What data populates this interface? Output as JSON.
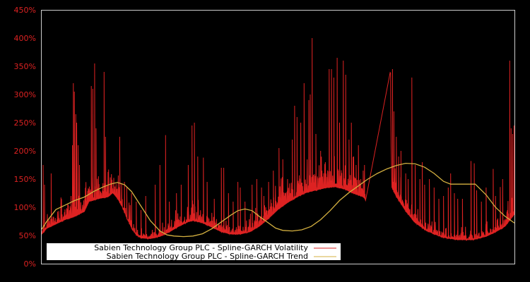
{
  "chart_data": {
    "type": "line",
    "title": "",
    "xlabel": "",
    "ylabel": "",
    "ylim": [
      0,
      450
    ],
    "y_ticks": [
      "0%",
      "50%",
      "100%",
      "150%",
      "200%",
      "250%",
      "300%",
      "350%",
      "400%",
      "450%"
    ],
    "y_tick_values": [
      0,
      50,
      100,
      150,
      200,
      250,
      300,
      350,
      400,
      450
    ],
    "x_ticks": [],
    "grid": false,
    "legend_position": "lower-left",
    "colors": {
      "background": "#000000",
      "frame": "#cccccc",
      "tick_label": "#dd2222",
      "volatility": "#dd2222",
      "trend": "#d4b040",
      "legend_bg": "#ffffff"
    },
    "x_domain": [
      0,
      100
    ],
    "series": [
      {
        "name": "Sabien Technology Group PLC - Spline-GARCH Volatility",
        "color": "#dd2222",
        "baseline": [
          [
            0,
            52
          ],
          [
            1,
            62
          ],
          [
            3,
            70
          ],
          [
            5,
            78
          ],
          [
            7,
            84
          ],
          [
            9,
            92
          ],
          [
            10,
            110
          ],
          [
            12,
            115
          ],
          [
            14,
            118
          ],
          [
            15,
            125
          ],
          [
            16,
            115
          ],
          [
            17,
            100
          ],
          [
            18,
            80
          ],
          [
            19,
            62
          ],
          [
            20,
            50
          ],
          [
            21,
            45
          ],
          [
            23,
            44
          ],
          [
            25,
            48
          ],
          [
            27,
            56
          ],
          [
            29,
            66
          ],
          [
            31,
            74
          ],
          [
            32,
            76
          ],
          [
            34,
            72
          ],
          [
            36,
            64
          ],
          [
            38,
            56
          ],
          [
            40,
            52
          ],
          [
            42,
            52
          ],
          [
            44,
            56
          ],
          [
            46,
            66
          ],
          [
            48,
            80
          ],
          [
            50,
            96
          ],
          [
            52,
            108
          ],
          [
            54,
            118
          ],
          [
            56,
            126
          ],
          [
            58,
            130
          ],
          [
            60,
            134
          ],
          [
            62,
            136
          ],
          [
            64,
            132
          ],
          [
            66,
            124
          ],
          [
            68,
            118
          ],
          [
            68.5,
            112
          ],
          [
            73.7,
            339
          ],
          [
            74,
            135
          ],
          [
            75,
            118
          ],
          [
            77,
            92
          ],
          [
            79,
            72
          ],
          [
            81,
            60
          ],
          [
            83,
            52
          ],
          [
            85,
            46
          ],
          [
            88,
            42
          ],
          [
            91,
            42
          ],
          [
            94,
            48
          ],
          [
            96,
            56
          ],
          [
            98,
            66
          ],
          [
            100,
            88
          ]
        ],
        "spikes": [
          [
            0.3,
            175
          ],
          [
            0.6,
            140
          ],
          [
            2,
            160
          ],
          [
            5.5,
            105
          ],
          [
            6,
            95
          ],
          [
            6.2,
            120
          ],
          [
            6.5,
            210
          ],
          [
            6.7,
            320
          ],
          [
            6.9,
            305
          ],
          [
            7.2,
            265
          ],
          [
            7.4,
            250
          ],
          [
            7.7,
            210
          ],
          [
            8,
            175
          ],
          [
            10.5,
            315
          ],
          [
            10.8,
            310
          ],
          [
            11.2,
            355
          ],
          [
            11.5,
            240
          ],
          [
            12,
            155
          ],
          [
            13.2,
            340
          ],
          [
            13.5,
            225
          ],
          [
            16.5,
            225
          ],
          [
            17.5,
            145
          ],
          [
            18,
            135
          ],
          [
            19,
            125
          ],
          [
            20,
            110
          ],
          [
            21,
            95
          ],
          [
            22,
            120
          ],
          [
            24,
            140
          ],
          [
            25,
            175
          ],
          [
            26.2,
            228
          ],
          [
            27,
            110
          ],
          [
            28.5,
            125
          ],
          [
            29.5,
            140
          ],
          [
            31,
            175
          ],
          [
            31.8,
            245
          ],
          [
            32.3,
            250
          ],
          [
            33,
            190
          ],
          [
            34.2,
            188
          ],
          [
            35,
            145
          ],
          [
            36.5,
            115
          ],
          [
            38,
            170
          ],
          [
            38.5,
            170
          ],
          [
            39.5,
            125
          ],
          [
            40.5,
            110
          ],
          [
            41.5,
            145
          ],
          [
            42,
            135
          ],
          [
            43,
            110
          ],
          [
            44.5,
            140
          ],
          [
            45.5,
            150
          ],
          [
            46.5,
            135
          ],
          [
            47,
            120
          ],
          [
            48,
            145
          ],
          [
            49,
            165
          ],
          [
            50.2,
            205
          ],
          [
            51,
            185
          ],
          [
            52,
            150
          ],
          [
            53,
            220
          ],
          [
            53.5,
            280
          ],
          [
            54,
            260
          ],
          [
            54.8,
            250
          ],
          [
            55.5,
            320
          ],
          [
            56.5,
            290
          ],
          [
            56.8,
            300
          ],
          [
            57.2,
            400
          ],
          [
            58,
            230
          ],
          [
            59,
            200
          ],
          [
            60,
            180
          ],
          [
            60.8,
            345
          ],
          [
            61.3,
            345
          ],
          [
            61.8,
            330
          ],
          [
            62.5,
            365
          ],
          [
            63,
            250
          ],
          [
            63.8,
            360
          ],
          [
            64.3,
            335
          ],
          [
            65,
            220
          ],
          [
            65.5,
            250
          ],
          [
            66,
            190
          ],
          [
            66.5,
            175
          ],
          [
            67,
            210
          ],
          [
            67.5,
            150
          ],
          [
            68,
            165
          ],
          [
            74.2,
            345
          ],
          [
            74.5,
            270
          ],
          [
            75,
            225
          ],
          [
            75.5,
            190
          ],
          [
            76,
            200
          ],
          [
            77,
            160
          ],
          [
            77.5,
            150
          ],
          [
            78.3,
            330
          ],
          [
            79,
            175
          ],
          [
            80,
            150
          ],
          [
            80.5,
            180
          ],
          [
            81,
            140
          ],
          [
            82,
            150
          ],
          [
            83,
            135
          ],
          [
            84,
            115
          ],
          [
            85,
            120
          ],
          [
            86,
            135
          ],
          [
            86.5,
            160
          ],
          [
            87.3,
            125
          ],
          [
            88,
            115
          ],
          [
            89,
            115
          ],
          [
            90.8,
            182
          ],
          [
            91.5,
            178
          ],
          [
            92,
            130
          ],
          [
            93,
            110
          ],
          [
            94,
            135
          ],
          [
            95.5,
            168
          ],
          [
            96,
            120
          ],
          [
            97,
            136
          ],
          [
            97.5,
            150
          ],
          [
            98.5,
            95
          ],
          [
            99,
            360
          ],
          [
            99.3,
            240
          ],
          [
            99.6,
            230
          ],
          [
            99.9,
            245
          ]
        ]
      },
      {
        "name": "Sabien Technology Group PLC - Spline-GARCH Trend",
        "color": "#d4b040",
        "points": [
          [
            0,
            61
          ],
          [
            1,
            74
          ],
          [
            3,
            96
          ],
          [
            5,
            104
          ],
          [
            7,
            112
          ],
          [
            9,
            118
          ],
          [
            11,
            128
          ],
          [
            13,
            136
          ],
          [
            14.5,
            141
          ],
          [
            16,
            144
          ],
          [
            17.5,
            140
          ],
          [
            19,
            128
          ],
          [
            21,
            102
          ],
          [
            23,
            76
          ],
          [
            25,
            58
          ],
          [
            26.5,
            51
          ],
          [
            28,
            49
          ],
          [
            30,
            48
          ],
          [
            32,
            49
          ],
          [
            34,
            53
          ],
          [
            36,
            62
          ],
          [
            38,
            74
          ],
          [
            40,
            86
          ],
          [
            41.5,
            94
          ],
          [
            43,
            97
          ],
          [
            44.5,
            94
          ],
          [
            46,
            84
          ],
          [
            48,
            72
          ],
          [
            49.5,
            63
          ],
          [
            51,
            59
          ],
          [
            53,
            58
          ],
          [
            55,
            60
          ],
          [
            57,
            66
          ],
          [
            59,
            78
          ],
          [
            61,
            94
          ],
          [
            63,
            112
          ],
          [
            65,
            126
          ],
          [
            67,
            138
          ],
          [
            69,
            150
          ],
          [
            71,
            160
          ],
          [
            73,
            168
          ],
          [
            75,
            174
          ],
          [
            77,
            178
          ],
          [
            79,
            177
          ],
          [
            81,
            171
          ],
          [
            83,
            160
          ],
          [
            85,
            146
          ],
          [
            86.5,
            141
          ],
          [
            91.7,
            141
          ],
          [
            94,
            122
          ],
          [
            96,
            100
          ],
          [
            98,
            84
          ],
          [
            100,
            72
          ]
        ]
      }
    ]
  },
  "legend": {
    "items": [
      {
        "label": "Sabien Technology Group PLC - Spline-GARCH Volatility",
        "color": "#dd2222"
      },
      {
        "label": "Sabien Technology Group PLC - Spline-GARCH Trend",
        "color": "#d4b040"
      }
    ]
  }
}
